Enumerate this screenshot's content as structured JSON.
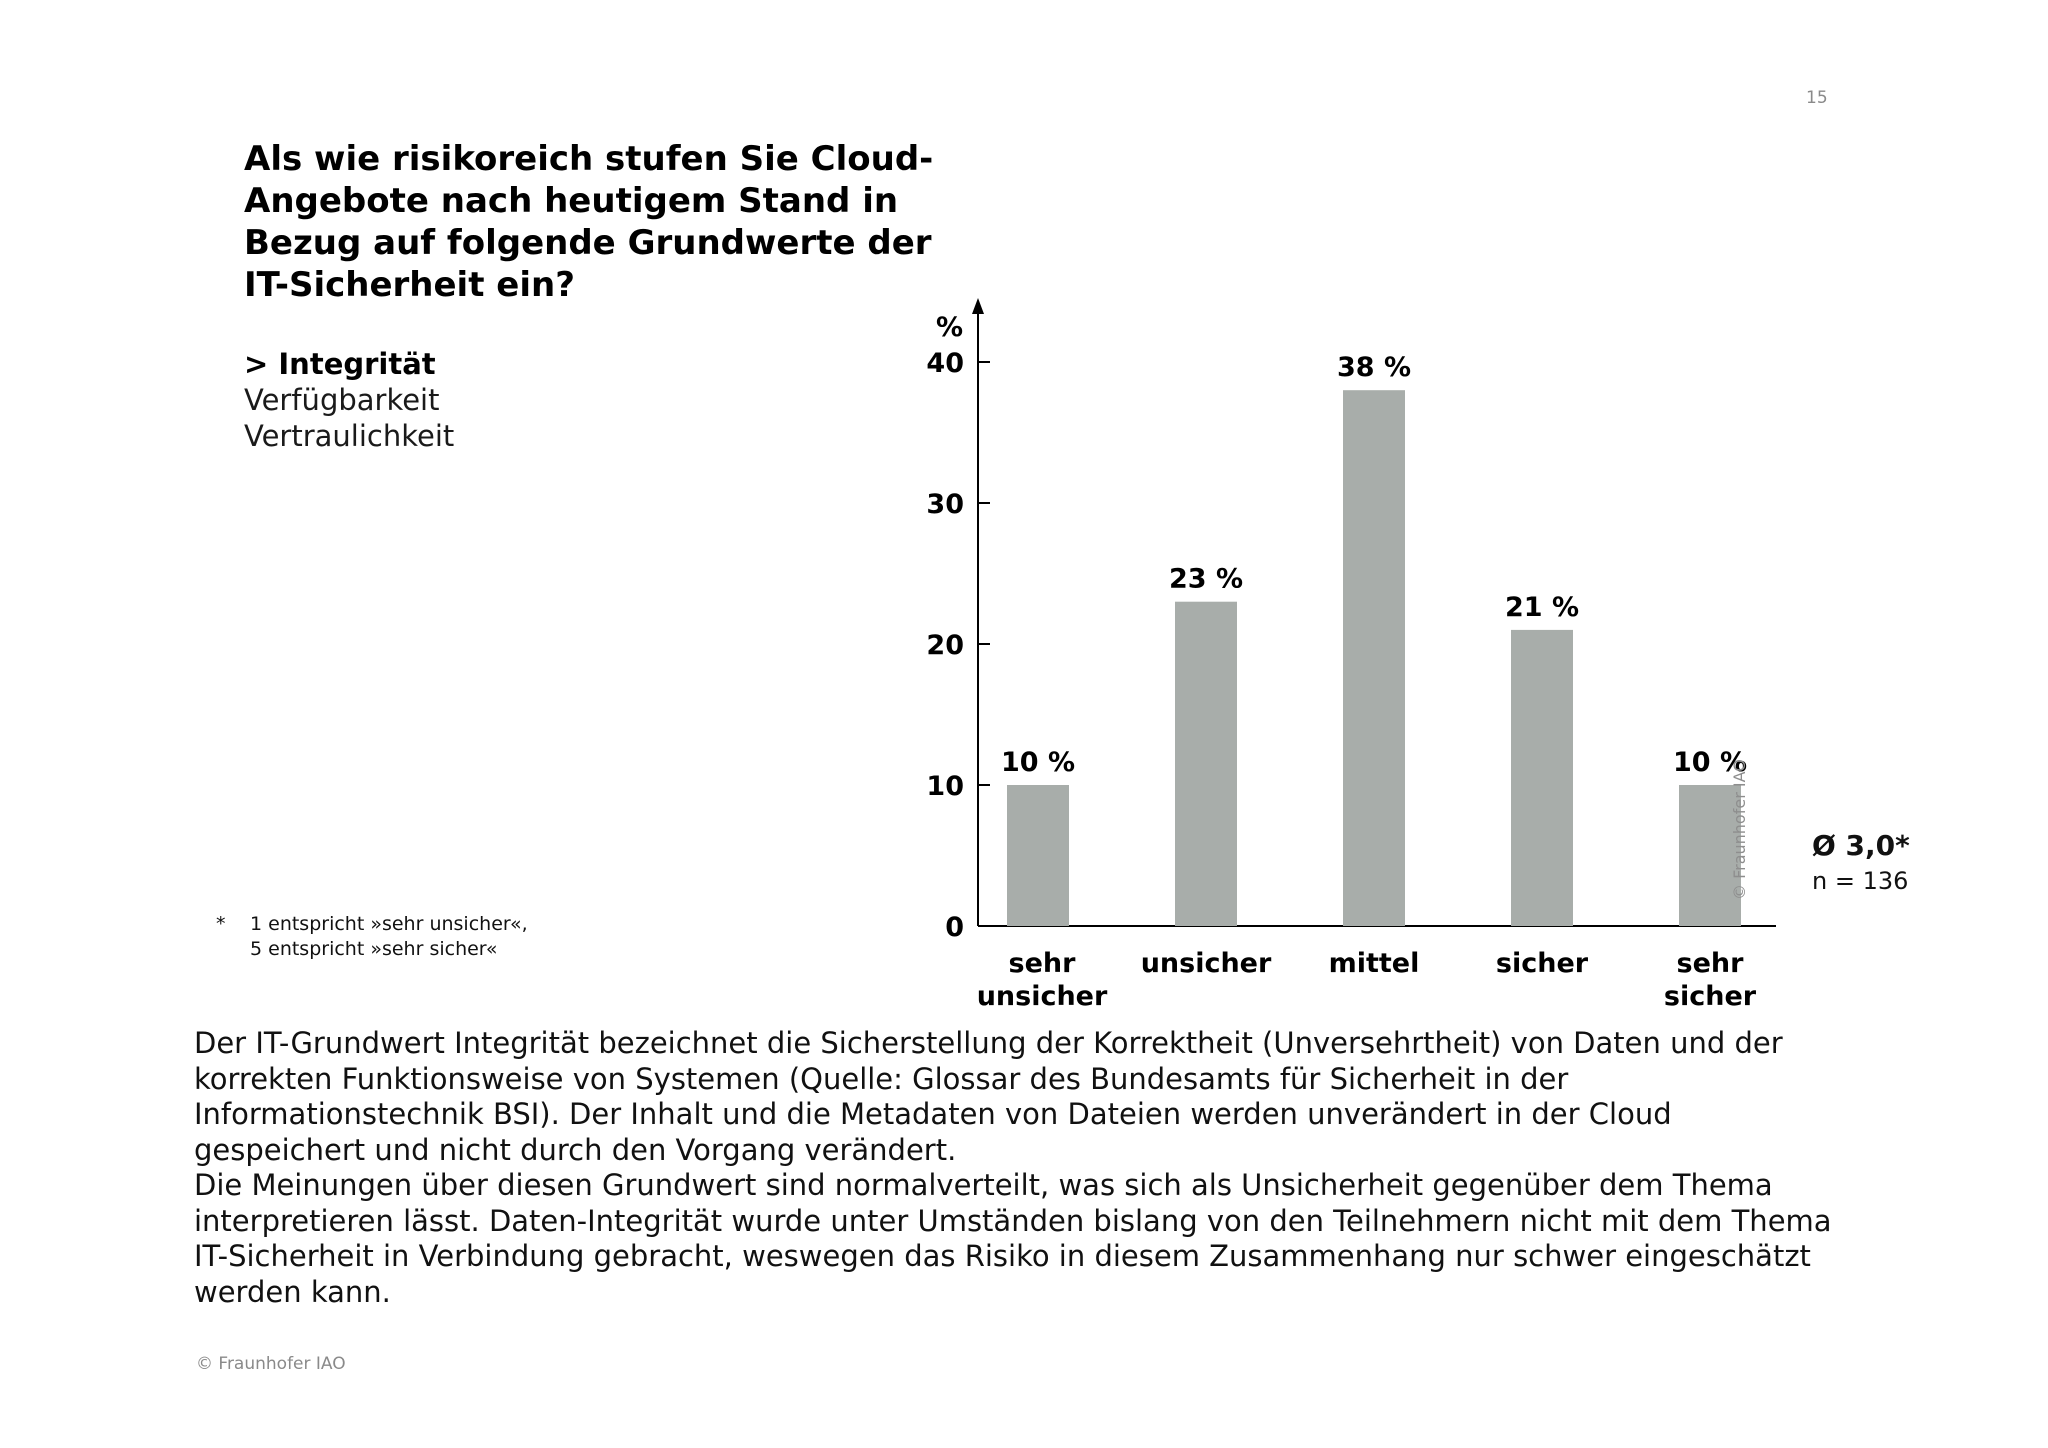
{
  "page_number": "15",
  "question": "Als wie risikoreich stufen Sie Cloud-Angebote nach heutigem Stand in Bezug auf folgende Grundwerte der IT-Sicherheit ein?",
  "options": {
    "active": "> Integrität",
    "items": [
      "Verfügbarkeit",
      "Vertraulichkeit"
    ]
  },
  "footnote": {
    "marker": "*",
    "line1": "1 entspricht »sehr unsicher«,",
    "line2": "5 entspricht »sehr sicher«"
  },
  "stats": {
    "mean": "Ø 3,0*",
    "n": "n = 136"
  },
  "watermark": "© Fraunhofer IAO",
  "body": {
    "paragraph1": "Der IT-Grundwert Integrität bezeichnet die Sicherstellung der Korrektheit (Unversehrtheit) von Daten und der korrekten Funktionsweise von Systemen (Quelle: Glossar des Bundesamts für Sicherheit in der Informationstechnik BSI). Der Inhalt und die Metadaten von Dateien werden unverändert in der Cloud gespeichert und nicht durch den Vorgang verändert.",
    "paragraph2": "Die Meinungen über diesen Grundwert sind normalverteilt, was sich als Unsicherheit gegenüber dem Thema interpretieren lässt. Daten-Integrität wurde unter Umständen bislang von den Teilnehmern nicht mit dem Thema IT-Sicherheit in Verbindung gebracht, weswegen das Risiko in diesem Zusammenhang nur schwer eingeschätzt werden kann."
  },
  "copyright": "© Fraunhofer IAO",
  "chart_data": {
    "type": "bar",
    "categories": [
      [
        "sehr",
        "unsicher"
      ],
      [
        "unsicher"
      ],
      [
        "mittel"
      ],
      [
        "sicher"
      ],
      [
        "sehr",
        "sicher"
      ]
    ],
    "values": [
      10,
      23,
      38,
      21,
      10
    ],
    "value_labels": [
      "10 %",
      "23 %",
      "38 %",
      "21 %",
      "10 %"
    ],
    "ylabel": "%",
    "yticks": [
      0,
      10,
      20,
      30,
      40
    ],
    "ylim": [
      0,
      40
    ],
    "grid": false,
    "bar_color": "#a8adaa"
  }
}
